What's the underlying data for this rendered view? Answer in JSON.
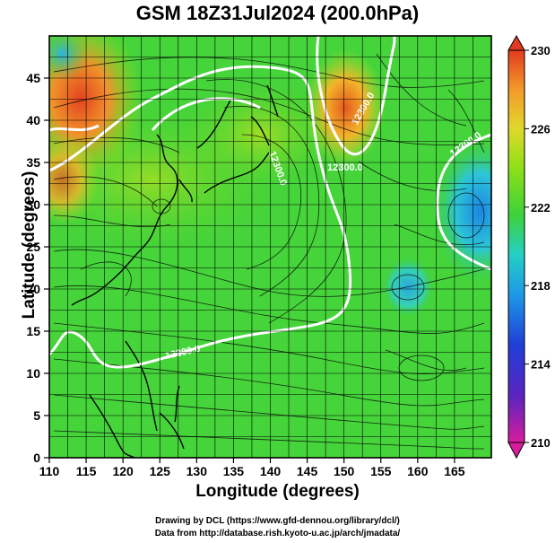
{
  "title": "GSM 18Z31Jul2024 (200.0hPa)",
  "xaxis": {
    "label": "Longitude (degrees)",
    "ticks": [
      "110",
      "115",
      "120",
      "125",
      "130",
      "135",
      "140",
      "145",
      "150",
      "155",
      "160",
      "165"
    ],
    "range": [
      110,
      170
    ]
  },
  "yaxis": {
    "label": "Latitude  (degrees)",
    "ticks": [
      "0",
      "5",
      "10",
      "15",
      "20",
      "25",
      "30",
      "35",
      "40",
      "45"
    ],
    "range": [
      0,
      50
    ]
  },
  "colorbar": {
    "labels": [
      "230",
      "226",
      "222",
      "218",
      "214",
      "210"
    ],
    "range": [
      210,
      230
    ],
    "colors": [
      "#d81d9c",
      "#3b24c8",
      "#1e8be6",
      "#22d3c6",
      "#3dd13a",
      "#8ee018",
      "#e4d32a",
      "#f4a12a",
      "#e23a20"
    ]
  },
  "contour_labels": [
    "12300.0",
    "12300.0",
    "12300.0",
    "12300.0",
    "12300.0"
  ],
  "credits": {
    "line1": "Drawing by DCL (https://www.gfd-dennou.org/library/dcl/)",
    "line2": "Data from http://database.rish.kyoto-u.ac.jp/arch/jmadata/"
  }
}
